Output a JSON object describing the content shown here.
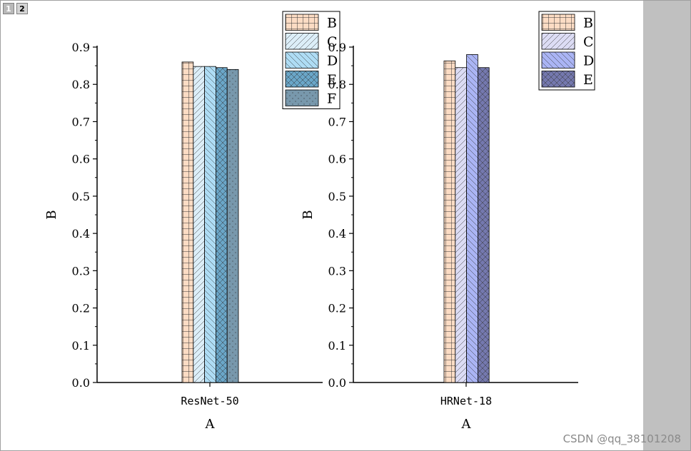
{
  "tabs": [
    "1",
    "2"
  ],
  "watermark": "CSDN @qq_38101208",
  "chart_data": [
    {
      "type": "bar",
      "categories": [
        "ResNet-50"
      ],
      "xlabel": "A",
      "ylabel": "B",
      "ylim": [
        0,
        0.9
      ],
      "yticks": [
        "0.0",
        "0.1",
        "0.2",
        "0.3",
        "0.4",
        "0.5",
        "0.6",
        "0.7",
        "0.8",
        "0.9"
      ],
      "legend_position": "top-right",
      "series": [
        {
          "name": "B",
          "values": [
            0.86
          ],
          "color": "#fcdcc4",
          "pattern": "grid"
        },
        {
          "name": "C",
          "values": [
            0.848
          ],
          "color": "#dceef8",
          "pattern": "diag-right"
        },
        {
          "name": "D",
          "values": [
            0.848
          ],
          "color": "#aedcf4",
          "pattern": "diag-left"
        },
        {
          "name": "E",
          "values": [
            0.845
          ],
          "color": "#6aa6c8",
          "pattern": "cross"
        },
        {
          "name": "F",
          "values": [
            0.84
          ],
          "color": "#7898ac",
          "pattern": "dots"
        }
      ]
    },
    {
      "type": "bar",
      "categories": [
        "HRNet-18"
      ],
      "xlabel": "A",
      "ylabel": "B",
      "ylim": [
        0,
        0.9
      ],
      "yticks": [
        "0.0",
        "0.1",
        "0.2",
        "0.3",
        "0.4",
        "0.5",
        "0.6",
        "0.7",
        "0.8",
        "0.9"
      ],
      "legend_position": "top-right",
      "series": [
        {
          "name": "B",
          "values": [
            0.863
          ],
          "color": "#fcdcc4",
          "pattern": "grid"
        },
        {
          "name": "C",
          "values": [
            0.845
          ],
          "color": "#dcdcf4",
          "pattern": "diag-right"
        },
        {
          "name": "D",
          "values": [
            0.88
          ],
          "color": "#aab4f4",
          "pattern": "diag-left"
        },
        {
          "name": "E",
          "values": [
            0.845
          ],
          "color": "#7478ae",
          "pattern": "cross"
        }
      ]
    }
  ]
}
